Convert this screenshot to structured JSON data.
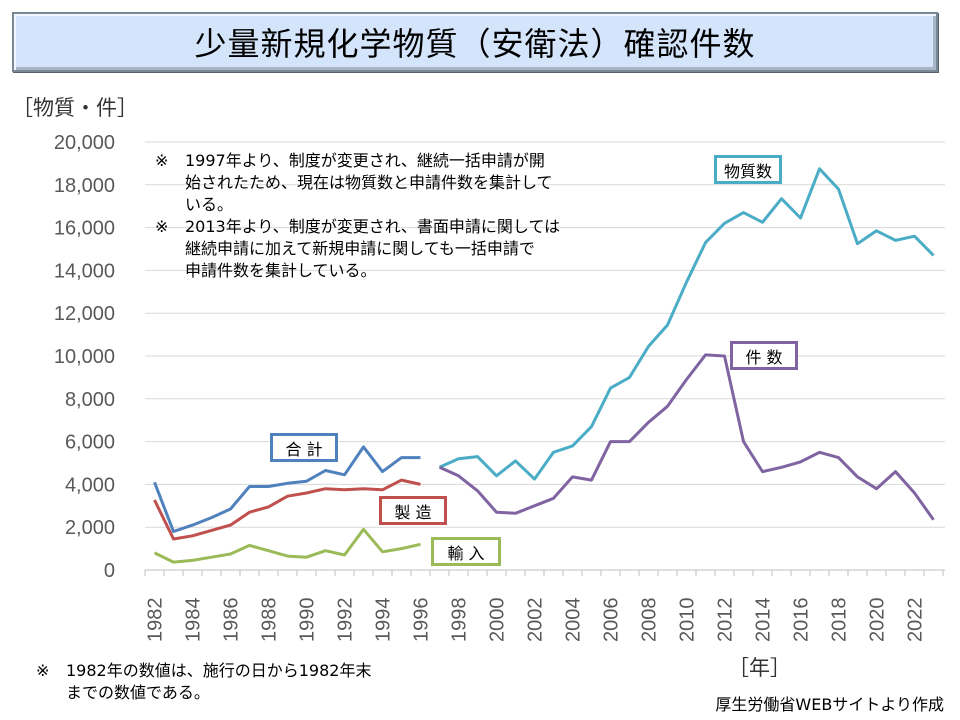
{
  "title": "少量新規化学物質（安衛法）確認件数",
  "y_unit_label": "［物質・件］",
  "x_unit_label": "［年］",
  "notes": [
    {
      "mark": "※",
      "lines": [
        "1997年より、制度が変更され、継続一括申請が開",
        "始されたため、現在は物質数と申請件数を集計して",
        "いる。"
      ]
    },
    {
      "mark": "※",
      "lines": [
        "2013年より、制度が変更され、書面申請に関しては",
        "継続申請に加えて新規申請に関しても一括申請で",
        "申請件数を集計している。"
      ]
    }
  ],
  "footnote": {
    "mark": "※",
    "lines": [
      "1982年の数値は、施行の日から1982年末",
      "までの数値である。"
    ]
  },
  "source": "厚生労働省WEBサイトより作成",
  "chart_data": {
    "type": "line",
    "title": "少量新規化学物質（安衛法）確認件数",
    "xlabel": "［年］",
    "ylabel": "［物質・件］",
    "ylim": [
      0,
      20000
    ],
    "yticks": [
      0,
      2000,
      4000,
      6000,
      8000,
      10000,
      12000,
      14000,
      16000,
      18000,
      20000
    ],
    "ytick_labels": [
      "0",
      "2,000",
      "4,000",
      "6,000",
      "8,000",
      "10,000",
      "12,000",
      "14,000",
      "16,000",
      "18,000",
      "20,000"
    ],
    "xlim": [
      1982,
      2023
    ],
    "xtick_labels": [
      "1982",
      "1984",
      "1986",
      "1988",
      "1990",
      "1992",
      "1994",
      "1996",
      "1998",
      "2000",
      "2002",
      "2004",
      "2006",
      "2008",
      "2010",
      "2012",
      "2014",
      "2016",
      "2018",
      "2020",
      "2022"
    ],
    "grid": true,
    "series": [
      {
        "name": "合 計",
        "color": "#4f81bd",
        "x": [
          1982,
          1983,
          1984,
          1985,
          1986,
          1987,
          1988,
          1989,
          1990,
          1991,
          1992,
          1993,
          1994,
          1995,
          1996
        ],
        "values": [
          4100,
          1800,
          2100,
          2450,
          2850,
          3900,
          3900,
          4050,
          4150,
          4650,
          4450,
          5750,
          4600,
          5250,
          5250
        ]
      },
      {
        "name": "製 造",
        "color": "#c0504d",
        "x": [
          1982,
          1983,
          1984,
          1985,
          1986,
          1987,
          1988,
          1989,
          1990,
          1991,
          1992,
          1993,
          1994,
          1995,
          1996
        ],
        "values": [
          3270,
          1450,
          1600,
          1850,
          2100,
          2700,
          2950,
          3450,
          3600,
          3800,
          3750,
          3800,
          3750,
          4200,
          4000
        ]
      },
      {
        "name": "輸 入",
        "color": "#9bbb59",
        "x": [
          1982,
          1983,
          1984,
          1985,
          1986,
          1987,
          1988,
          1989,
          1990,
          1991,
          1992,
          1993,
          1994,
          1995,
          1996
        ],
        "values": [
          800,
          370,
          450,
          600,
          750,
          1150,
          900,
          650,
          600,
          900,
          700,
          1900,
          850,
          1000,
          1200
        ]
      },
      {
        "name": "物質数",
        "color": "#4bacc6",
        "x": [
          1997,
          1998,
          1999,
          2000,
          2001,
          2002,
          2003,
          2004,
          2005,
          2006,
          2007,
          2008,
          2009,
          2010,
          2011,
          2012,
          2013,
          2014,
          2015,
          2016,
          2017,
          2018,
          2019,
          2020,
          2021,
          2022,
          2023
        ],
        "values": [
          4800,
          5200,
          5300,
          4400,
          5100,
          4250,
          5500,
          5800,
          6700,
          8500,
          9000,
          10450,
          11450,
          13450,
          15300,
          16200,
          16700,
          16250,
          17350,
          16450,
          18750,
          17800,
          15250,
          15850,
          15400,
          15600,
          14700
        ]
      },
      {
        "name": "件 数",
        "color": "#8064a2",
        "x": [
          1997,
          1998,
          1999,
          2000,
          2001,
          2002,
          2003,
          2004,
          2005,
          2006,
          2007,
          2008,
          2009,
          2010,
          2011,
          2012,
          2013,
          2014,
          2015,
          2016,
          2017,
          2018,
          2019,
          2020,
          2021,
          2022,
          2023
        ],
        "values": [
          4800,
          4400,
          3700,
          2700,
          2650,
          3000,
          3350,
          4350,
          4200,
          6000,
          6000,
          6900,
          7650,
          8900,
          10050,
          10000,
          6000,
          4600,
          4800,
          5050,
          5500,
          5250,
          4350,
          3800,
          4600,
          3600,
          2350
        ]
      }
    ]
  }
}
